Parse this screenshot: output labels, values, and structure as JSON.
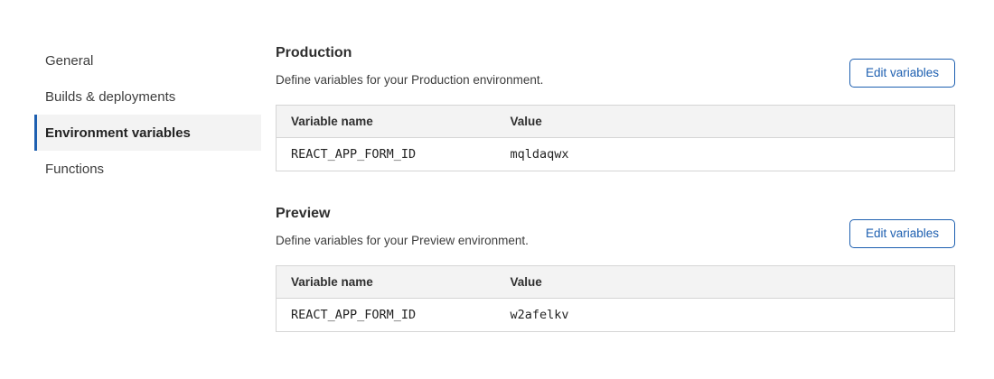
{
  "colors": {
    "accent": "#1d5fb0",
    "table-border": "#d5d5d5",
    "table-header-bg": "#f3f3f3",
    "sidebar-selected-bg": "#f3f3f3"
  },
  "sidebar": {
    "items": [
      {
        "label": "General",
        "selected": false
      },
      {
        "label": "Builds & deployments",
        "selected": false
      },
      {
        "label": "Environment variables",
        "selected": true
      },
      {
        "label": "Functions",
        "selected": false
      }
    ]
  },
  "sections": [
    {
      "title": "Production",
      "description": "Define variables for your Production environment.",
      "edit_button_label": "Edit variables",
      "table": {
        "columns": [
          "Variable name",
          "Value"
        ],
        "rows": [
          {
            "name": "REACT_APP_FORM_ID",
            "value": "mqldaqwx"
          }
        ]
      }
    },
    {
      "title": "Preview",
      "description": "Define variables for your Preview environment.",
      "edit_button_label": "Edit variables",
      "table": {
        "columns": [
          "Variable name",
          "Value"
        ],
        "rows": [
          {
            "name": "REACT_APP_FORM_ID",
            "value": "w2afelkv"
          }
        ]
      }
    }
  ]
}
